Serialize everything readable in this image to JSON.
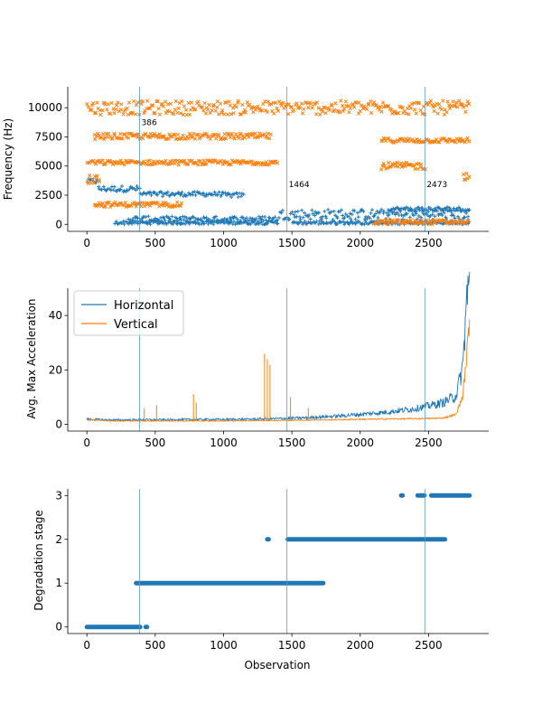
{
  "chart_data": [
    {
      "type": "scatter",
      "title": "",
      "xlabel": "",
      "ylabel": "Frequency (Hz)",
      "xlim": [
        -140,
        2940
      ],
      "ylim": [
        -600,
        11800
      ],
      "xticks": [
        0,
        500,
        1000,
        1500,
        2000,
        2500
      ],
      "yticks": [
        0,
        2500,
        5000,
        7500,
        10000
      ],
      "vlines": [
        {
          "x": 386,
          "label": "386",
          "label_y": 8500
        },
        {
          "x": 1464,
          "label": "1464",
          "label_y": 3200
        },
        {
          "x": 2473,
          "label": "2473",
          "label_y": 3200
        }
      ],
      "series": [
        {
          "name": "Horizontal",
          "marker": "+",
          "bands": [
            {
              "x": [
                0,
                80
              ],
              "y": [
                3500,
                3900
              ]
            },
            {
              "x": [
                80,
                390
              ],
              "y": [
                2800,
                3300
              ]
            },
            {
              "x": [
                390,
                1000
              ],
              "y": [
                2400,
                2800
              ]
            },
            {
              "x": [
                1000,
                1150
              ],
              "y": [
                2300,
                2700
              ]
            },
            {
              "x": [
                200,
                1400
              ],
              "y": [
                0,
                300
              ]
            },
            {
              "x": [
                300,
                1400
              ],
              "y": [
                200,
                700
              ]
            },
            {
              "x": [
                1400,
                2800
              ],
              "y": [
                400,
                1300
              ]
            },
            {
              "x": [
                1500,
                2800
              ],
              "y": [
                0,
                300
              ]
            },
            {
              "x": [
                2200,
                2800
              ],
              "y": [
                1100,
                1500
              ]
            }
          ]
        },
        {
          "name": "Vertical",
          "marker": "x",
          "bands": [
            {
              "x": [
                0,
                2800
              ],
              "y": [
                9400,
                10600
              ]
            },
            {
              "x": [
                50,
                1350
              ],
              "y": [
                7300,
                7800
              ]
            },
            {
              "x": [
                2150,
                2800
              ],
              "y": [
                7000,
                7400
              ]
            },
            {
              "x": [
                0,
                1400
              ],
              "y": [
                5100,
                5500
              ]
            },
            {
              "x": [
                2150,
                2480
              ],
              "y": [
                4700,
                5300
              ]
            },
            {
              "x": [
                50,
                700
              ],
              "y": [
                1500,
                1900
              ]
            },
            {
              "x": [
                0,
                100
              ],
              "y": [
                3400,
                4200
              ]
            },
            {
              "x": [
                2100,
                2800
              ],
              "y": [
                0,
                400
              ]
            },
            {
              "x": [
                2750,
                2800
              ],
              "y": [
                3800,
                4400
              ]
            }
          ]
        }
      ]
    },
    {
      "type": "line",
      "title": "",
      "xlabel": "",
      "ylabel": "Avg. Max Acceleration",
      "xlim": [
        -140,
        2940
      ],
      "ylim": [
        -2.5,
        50
      ],
      "xticks": [
        0,
        500,
        1000,
        1500,
        2000,
        2500
      ],
      "yticks": [
        0,
        20,
        40
      ],
      "legend": "upper-left",
      "series": [
        {
          "name": "Horizontal",
          "x": [
            0,
            200,
            400,
            600,
            800,
            1000,
            1200,
            1400,
            1600,
            1800,
            2000,
            2200,
            2400,
            2600,
            2700,
            2750,
            2780,
            2800
          ],
          "y": [
            1.8,
            1.5,
            1.6,
            1.6,
            1.7,
            1.7,
            1.8,
            2.0,
            2.3,
            2.8,
            3.5,
            4.3,
            5.5,
            7.5,
            10,
            20,
            45,
            48
          ]
        },
        {
          "name": "Vertical",
          "x": [
            0,
            200,
            400,
            600,
            800,
            1000,
            1200,
            1400,
            1600,
            1800,
            2000,
            2200,
            2400,
            2600,
            2700,
            2750,
            2780,
            2800
          ],
          "y": [
            1.6,
            1.2,
            1.2,
            1.2,
            1.2,
            1.2,
            1.3,
            1.4,
            1.5,
            1.6,
            1.8,
            1.9,
            2.0,
            2.2,
            3.5,
            10,
            25,
            38
          ]
        }
      ],
      "spikes": [
        {
          "x": 420,
          "y": 6
        },
        {
          "x": 510,
          "y": 7
        },
        {
          "x": 780,
          "y": 11
        },
        {
          "x": 800,
          "y": 8
        },
        {
          "x": 1300,
          "y": 26
        },
        {
          "x": 1320,
          "y": 24
        },
        {
          "x": 1340,
          "y": 22
        },
        {
          "x": 1490,
          "y": 10
        },
        {
          "x": 1620,
          "y": 6
        }
      ]
    },
    {
      "type": "scatter",
      "title": "",
      "xlabel": "Observation",
      "ylabel": "Degradation stage",
      "xlim": [
        -140,
        2940
      ],
      "ylim": [
        -0.15,
        3.15
      ],
      "xticks": [
        0,
        500,
        1000,
        1500,
        2000,
        2500
      ],
      "yticks": [
        0,
        1,
        2,
        3
      ],
      "series": [
        {
          "name": "Degradation stage",
          "segments": [
            {
              "y": 0,
              "x": [
                0,
                390
              ]
            },
            {
              "y": 0,
              "x": [
                430,
                440
              ]
            },
            {
              "y": 1,
              "x": [
                360,
                1730
              ]
            },
            {
              "y": 2,
              "x": [
                1320,
                1330
              ]
            },
            {
              "y": 2,
              "x": [
                1470,
                2620
              ]
            },
            {
              "y": 3,
              "x": [
                2300,
                2310
              ]
            },
            {
              "y": 3,
              "x": [
                2420,
                2470
              ]
            },
            {
              "y": 3,
              "x": [
                2520,
                2800
              ]
            }
          ]
        }
      ],
      "vlines": [
        386,
        1464,
        2473
      ]
    }
  ],
  "colors": {
    "horizontal": "#1f77b4",
    "vertical": "#ff7f0e",
    "vline": "#5a9bc8"
  }
}
